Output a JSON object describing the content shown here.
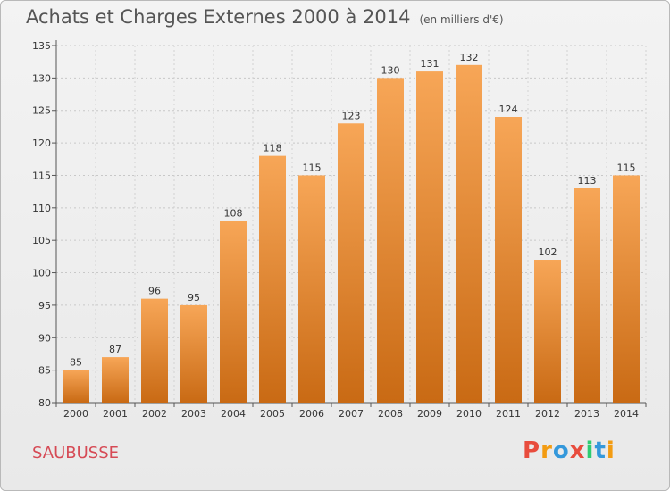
{
  "header": {
    "title": "Achats et Charges Externes 2000 à 2014",
    "subtitle": "(en milliers d'€)"
  },
  "footer": {
    "commune": "SAUBUSSE",
    "logo_text": "Proxiti"
  },
  "colors": {
    "bar_light": "#f7a657",
    "bar_dark": "#c96a14",
    "commune_text": "#d64a55",
    "logo_letters": [
      "#e84c3d",
      "#f39c12",
      "#3498db",
      "#e84c3d",
      "#2ecc71",
      "#3498db",
      "#f39c12"
    ]
  },
  "chart_data": {
    "type": "bar",
    "title": "Achats et Charges Externes 2000 à 2014",
    "subtitle": "(en milliers d'€)",
    "categories": [
      "2000",
      "2001",
      "2002",
      "2003",
      "2004",
      "2005",
      "2006",
      "2007",
      "2008",
      "2009",
      "2010",
      "2011",
      "2012",
      "2013",
      "2014"
    ],
    "values": [
      85,
      87,
      96,
      95,
      108,
      118,
      115,
      123,
      130,
      131,
      132,
      124,
      102,
      113,
      115
    ],
    "ylim": [
      80,
      135
    ],
    "yticks": [
      80,
      85,
      90,
      95,
      100,
      105,
      110,
      115,
      120,
      125,
      130,
      135
    ],
    "grid": true,
    "xlabel": "",
    "ylabel": ""
  }
}
